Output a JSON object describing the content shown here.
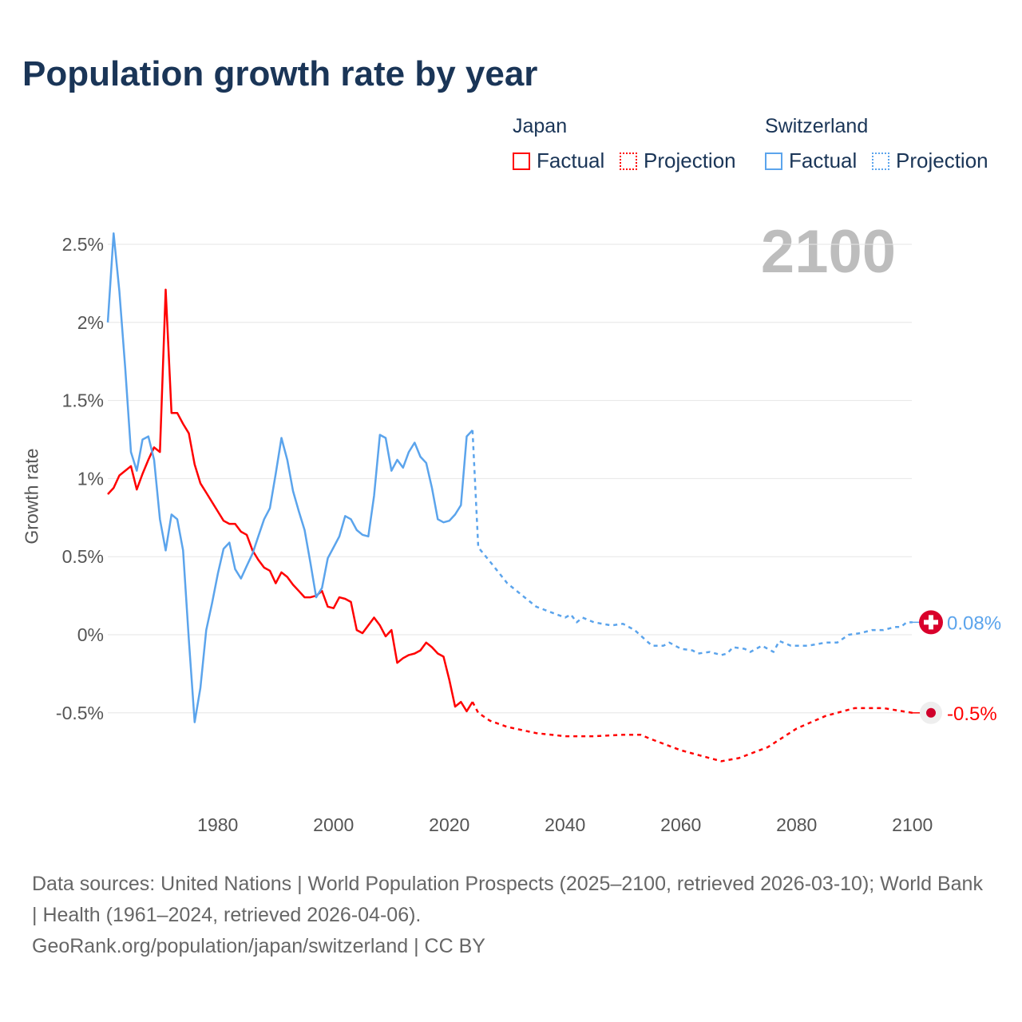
{
  "title": "Population growth rate by year",
  "current_year": "2100",
  "legend": {
    "groups": [
      {
        "name": "Japan",
        "color": "#ff0000",
        "items": [
          "Factual",
          "Projection"
        ]
      },
      {
        "name": "Switzerland",
        "color": "#5ba4ec",
        "items": [
          "Factual",
          "Projection"
        ]
      }
    ]
  },
  "end_labels": {
    "japan": "-0.5%",
    "switzerland": "0.08%"
  },
  "footer": {
    "sources": "Data sources: United Nations | World Population Prospects (2025–2100, retrieved 2026-03-10); World Bank | Health (1961–2024, retrieved 2026-04-06).",
    "credit": "GeoRank.org/population/japan/switzerland | CC BY"
  },
  "chart_data": {
    "type": "line",
    "title": "Population growth rate by year",
    "xlabel": "",
    "ylabel": "Growth rate",
    "xlim": [
      1961,
      2100
    ],
    "ylim": [
      -1.0,
      2.6
    ],
    "x_ticks": [
      1980,
      2000,
      2020,
      2040,
      2060,
      2080,
      2100
    ],
    "y_ticks": [
      {
        "v": 2.5,
        "label": "2.5%"
      },
      {
        "v": 2,
        "label": "2%"
      },
      {
        "v": 1.5,
        "label": "1.5%"
      },
      {
        "v": 1,
        "label": "1%"
      },
      {
        "v": 0.5,
        "label": "0.5%"
      },
      {
        "v": 0,
        "label": "0%"
      },
      {
        "v": -0.5,
        "label": "-0.5%"
      }
    ],
    "grid": true,
    "legend_position": "top-right",
    "series": [
      {
        "name": "Japan Factual",
        "color": "#ff0000",
        "dashed": false,
        "x": [
          1961,
          1962,
          1963,
          1964,
          1965,
          1966,
          1967,
          1968,
          1969,
          1970,
          1971,
          1972,
          1973,
          1974,
          1975,
          1976,
          1977,
          1978,
          1979,
          1980,
          1981,
          1982,
          1983,
          1984,
          1985,
          1986,
          1987,
          1988,
          1989,
          1990,
          1991,
          1992,
          1993,
          1994,
          1995,
          1996,
          1997,
          1998,
          1999,
          2000,
          2001,
          2002,
          2003,
          2004,
          2005,
          2006,
          2007,
          2008,
          2009,
          2010,
          2011,
          2012,
          2013,
          2014,
          2015,
          2016,
          2017,
          2018,
          2019,
          2020,
          2021,
          2022,
          2023,
          2024
        ],
        "y": [
          0.9,
          0.94,
          1.02,
          1.05,
          1.08,
          0.93,
          1.03,
          1.12,
          1.2,
          1.17,
          2.21,
          1.42,
          1.42,
          1.35,
          1.29,
          1.09,
          0.97,
          0.91,
          0.85,
          0.79,
          0.73,
          0.71,
          0.71,
          0.66,
          0.64,
          0.54,
          0.48,
          0.43,
          0.41,
          0.33,
          0.4,
          0.37,
          0.32,
          0.28,
          0.24,
          0.24,
          0.25,
          0.28,
          0.18,
          0.17,
          0.24,
          0.23,
          0.21,
          0.03,
          0.01,
          0.06,
          0.11,
          0.06,
          -0.01,
          0.03,
          -0.18,
          -0.15,
          -0.13,
          -0.12,
          -0.1,
          -0.05,
          -0.08,
          -0.12,
          -0.14,
          -0.29,
          -0.46,
          -0.43,
          -0.49,
          -0.43
        ]
      },
      {
        "name": "Japan Projection",
        "color": "#ff0000",
        "dashed": true,
        "x": [
          2024,
          2025,
          2027,
          2030,
          2035,
          2040,
          2045,
          2050,
          2053,
          2055,
          2060,
          2065,
          2067,
          2070,
          2075,
          2080,
          2085,
          2090,
          2095,
          2100
        ],
        "y": [
          -0.43,
          -0.5,
          -0.55,
          -0.59,
          -0.63,
          -0.65,
          -0.65,
          -0.64,
          -0.64,
          -0.67,
          -0.74,
          -0.79,
          -0.81,
          -0.79,
          -0.72,
          -0.6,
          -0.52,
          -0.47,
          -0.47,
          -0.5
        ]
      },
      {
        "name": "Switzerland Factual",
        "color": "#5ba4ec",
        "dashed": false,
        "x": [
          1961,
          1962,
          1963,
          1964,
          1965,
          1966,
          1967,
          1968,
          1969,
          1970,
          1971,
          1972,
          1973,
          1974,
          1975,
          1976,
          1977,
          1978,
          1979,
          1980,
          1981,
          1982,
          1983,
          1984,
          1985,
          1986,
          1987,
          1988,
          1989,
          1990,
          1991,
          1992,
          1993,
          1994,
          1995,
          1996,
          1997,
          1998,
          1999,
          2000,
          2001,
          2002,
          2003,
          2004,
          2005,
          2006,
          2007,
          2008,
          2009,
          2010,
          2011,
          2012,
          2013,
          2014,
          2015,
          2016,
          2017,
          2018,
          2019,
          2020,
          2021,
          2022,
          2023,
          2024
        ],
        "y": [
          2.0,
          2.57,
          2.2,
          1.71,
          1.17,
          1.05,
          1.25,
          1.27,
          1.12,
          0.74,
          0.54,
          0.77,
          0.74,
          0.54,
          -0.03,
          -0.56,
          -0.34,
          0.03,
          0.2,
          0.39,
          0.55,
          0.59,
          0.42,
          0.36,
          0.44,
          0.52,
          0.63,
          0.74,
          0.81,
          1.03,
          1.26,
          1.12,
          0.92,
          0.79,
          0.67,
          0.46,
          0.24,
          0.3,
          0.49,
          0.56,
          0.63,
          0.76,
          0.74,
          0.67,
          0.64,
          0.63,
          0.89,
          1.28,
          1.26,
          1.05,
          1.12,
          1.07,
          1.17,
          1.23,
          1.14,
          1.1,
          0.94,
          0.74,
          0.72,
          0.73,
          0.77,
          0.83,
          1.27,
          1.31
        ]
      },
      {
        "name": "Switzerland Projection",
        "color": "#5ba4ec",
        "dashed": true,
        "x": [
          2024,
          2025,
          2027,
          2030,
          2033,
          2035,
          2040,
          2041,
          2042,
          2043,
          2045,
          2048,
          2050,
          2052,
          2055,
          2057,
          2058,
          2060,
          2062,
          2063,
          2065,
          2067,
          2068,
          2069,
          2071,
          2072,
          2074,
          2076,
          2077,
          2079,
          2082,
          2085,
          2087,
          2089,
          2091,
          2093,
          2095,
          2097,
          2098,
          2099,
          2100
        ],
        "y": [
          1.31,
          0.56,
          0.47,
          0.33,
          0.24,
          0.18,
          0.11,
          0.13,
          0.08,
          0.11,
          0.08,
          0.06,
          0.07,
          0.03,
          -0.07,
          -0.07,
          -0.05,
          -0.09,
          -0.1,
          -0.12,
          -0.11,
          -0.13,
          -0.12,
          -0.08,
          -0.09,
          -0.11,
          -0.07,
          -0.11,
          -0.04,
          -0.07,
          -0.07,
          -0.05,
          -0.05,
          0.0,
          0.01,
          0.03,
          0.03,
          0.05,
          0.05,
          0.08,
          0.08
        ]
      }
    ]
  }
}
